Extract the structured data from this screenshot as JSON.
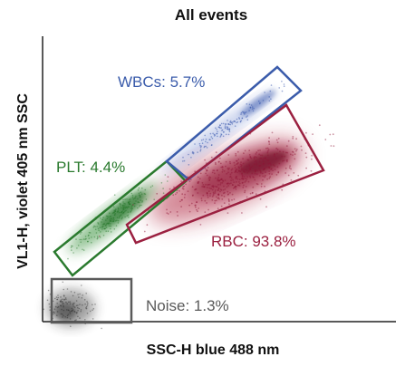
{
  "chart_data": {
    "type": "scatter",
    "title": "All events",
    "xlabel": "SSC-H blue 488 nm",
    "ylabel": "VL1-H, violet 405 nm SSC",
    "grid": false,
    "legend": "none",
    "gates": [
      {
        "name": "WBCs",
        "label": "WBCs: 5.7%",
        "percent": 5.7,
        "color": "#3b5cab"
      },
      {
        "name": "PLT",
        "label": "PLT: 4.4%",
        "percent": 4.4,
        "color": "#2a7a2e"
      },
      {
        "name": "RBC",
        "label": "RBC: 93.8%",
        "percent": 93.8,
        "color": "#9b2040"
      },
      {
        "name": "Noise",
        "label": "Noise: 1.3%",
        "percent": 1.3,
        "color": "#5a5a5a"
      }
    ]
  }
}
